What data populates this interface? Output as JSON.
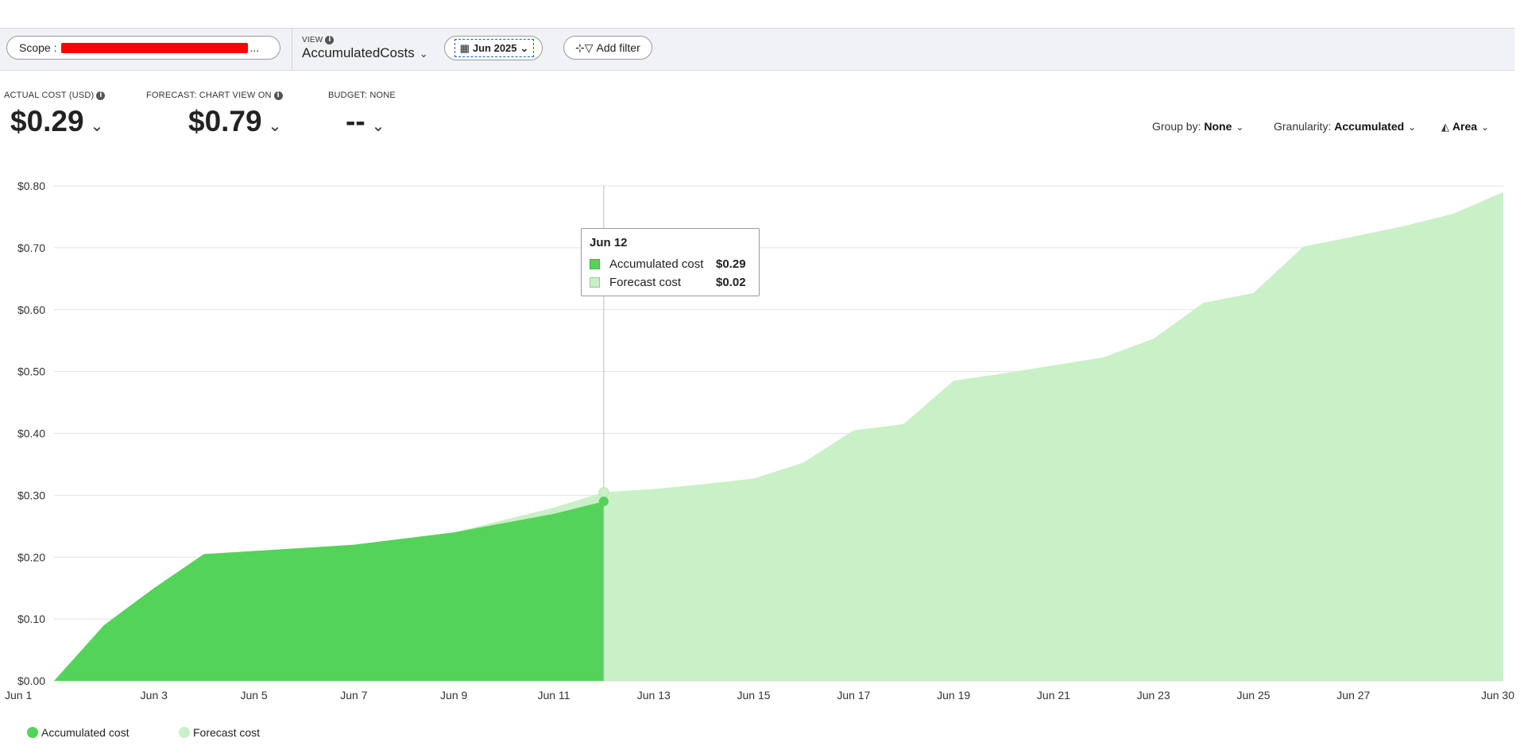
{
  "toolbar": {
    "scope_label": "Scope :",
    "scope_ellipsis": "...",
    "view_label": "VIEW",
    "view_value": "AccumulatedCosts",
    "date_value": "Jun 2025",
    "add_filter_label": "Add filter"
  },
  "kpis": {
    "actual_label": "ACTUAL COST (USD)",
    "actual_value": "$0.29",
    "forecast_label": "FORECAST: CHART VIEW ON",
    "forecast_value": "$0.79",
    "budget_label": "BUDGET: NONE",
    "budget_value": "--"
  },
  "controls": {
    "group_by_label": "Group by:",
    "group_by_value": "None",
    "granularity_label": "Granularity:",
    "granularity_value": "Accumulated",
    "chart_type_value": "Area"
  },
  "tooltip": {
    "date": "Jun 12",
    "rows": [
      {
        "name": "Accumulated cost",
        "value": "$0.29"
      },
      {
        "name": "Forecast cost",
        "value": "$0.02"
      }
    ]
  },
  "legend": {
    "accumulated": "Accumulated cost",
    "forecast": "Forecast cost"
  },
  "colors": {
    "accumulated": "#54d35a",
    "forecast": "#c9f0c7"
  },
  "chart_data": {
    "type": "area",
    "y_ticks": [
      "$0.00",
      "$0.10",
      "$0.20",
      "$0.30",
      "$0.40",
      "$0.50",
      "$0.60",
      "$0.70",
      "$0.80"
    ],
    "ylim": [
      0,
      0.8
    ],
    "xlim": [
      1,
      30
    ],
    "x_ticks": [
      {
        "day": 1,
        "label": "Jun 1"
      },
      {
        "day": 3,
        "label": "Jun 3"
      },
      {
        "day": 5,
        "label": "Jun 5"
      },
      {
        "day": 7,
        "label": "Jun 7"
      },
      {
        "day": 9,
        "label": "Jun 9"
      },
      {
        "day": 11,
        "label": "Jun 11"
      },
      {
        "day": 13,
        "label": "Jun 13"
      },
      {
        "day": 15,
        "label": "Jun 15"
      },
      {
        "day": 17,
        "label": "Jun 17"
      },
      {
        "day": 19,
        "label": "Jun 19"
      },
      {
        "day": 21,
        "label": "Jun 21"
      },
      {
        "day": 23,
        "label": "Jun 23"
      },
      {
        "day": 25,
        "label": "Jun 25"
      },
      {
        "day": 27,
        "label": "Jun 27"
      },
      {
        "day": 30,
        "label": "Jun 30"
      }
    ],
    "series": [
      {
        "name": "Accumulated cost",
        "x": [
          1,
          2,
          3,
          4,
          5,
          6,
          7,
          8,
          9,
          10,
          11,
          12
        ],
        "y": [
          0.0,
          0.09,
          0.15,
          0.205,
          0.21,
          0.215,
          0.22,
          0.23,
          0.24,
          0.255,
          0.27,
          0.29
        ]
      },
      {
        "name": "Forecast cost",
        "x": [
          9,
          10,
          11,
          12,
          13,
          14,
          15,
          16,
          17,
          18,
          19,
          20,
          21,
          22,
          23,
          24,
          25,
          26,
          27,
          28,
          29,
          30
        ],
        "y": [
          0.24,
          0.26,
          0.28,
          0.305,
          0.31,
          0.318,
          0.327,
          0.353,
          0.405,
          0.415,
          0.485,
          0.497,
          0.51,
          0.523,
          0.553,
          0.611,
          0.627,
          0.702,
          0.718,
          0.735,
          0.755,
          0.79
        ]
      }
    ],
    "hover_day": 12,
    "grid": true,
    "legend_position": "bottom-left"
  }
}
